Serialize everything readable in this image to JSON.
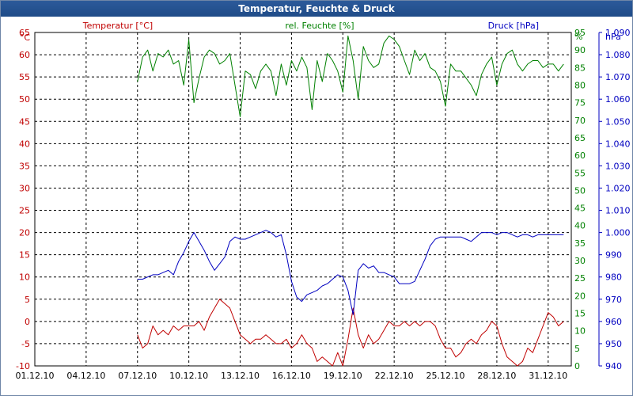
{
  "window": {
    "title": "Temperatur, Feuchte & Druck"
  },
  "chart_data": {
    "type": "line",
    "title": "Temperatur, Feuchte & Druck",
    "xlabel": "",
    "x_ticks": [
      "01.12.10",
      "04.12.10",
      "07.12.10",
      "10.12.10",
      "13.12.10",
      "16.12.10",
      "19.12.10",
      "22.12.10",
      "25.12.10",
      "28.12.10",
      "31.12.10"
    ],
    "xlim": [
      1,
      32.35
    ],
    "grid": true,
    "axes": {
      "temperature": {
        "label": "Temperatur [°C]",
        "unit": "°C",
        "side": "left",
        "color": "#c00000",
        "min": -10,
        "max": 65,
        "step": 5
      },
      "humidity": {
        "label": "rel. Feuchte [%]",
        "unit": "%",
        "side": "right",
        "color": "#008000",
        "min": 0,
        "max": 95,
        "step": 5
      },
      "pressure": {
        "label": "Druck [hPa]",
        "unit": "hPa",
        "side": "right",
        "color": "#0000c0",
        "min": 940,
        "max": 1090,
        "step": 10,
        "tick_labels": [
          "940",
          "950",
          "960",
          "970",
          "980",
          "990",
          "1.000",
          "1.010",
          "1.020",
          "1.030",
          "1.040",
          "1.050",
          "1.060",
          "1.070",
          "1.080",
          "1.090"
        ]
      }
    },
    "series": [
      {
        "name": "Temperatur [°C]",
        "axis": "temperature",
        "color": "#c00000",
        "x": [
          7.0,
          7.3,
          7.6,
          7.9,
          8.2,
          8.5,
          8.8,
          9.1,
          9.4,
          9.7,
          10.0,
          10.3,
          10.6,
          10.9,
          11.2,
          11.5,
          11.8,
          12.1,
          12.4,
          12.7,
          13.0,
          13.3,
          13.6,
          13.9,
          14.2,
          14.5,
          14.8,
          15.1,
          15.4,
          15.7,
          16.0,
          16.3,
          16.6,
          16.9,
          17.2,
          17.5,
          17.8,
          18.1,
          18.4,
          18.7,
          19.0,
          19.3,
          19.6,
          19.9,
          20.2,
          20.5,
          20.8,
          21.1,
          21.4,
          21.7,
          22.0,
          22.3,
          22.6,
          22.9,
          23.2,
          23.5,
          23.8,
          24.1,
          24.4,
          24.7,
          25.0,
          25.3,
          25.6,
          25.9,
          26.2,
          26.5,
          26.8,
          27.1,
          27.4,
          27.7,
          28.0,
          28.3,
          28.6,
          28.9,
          29.2,
          29.5,
          29.8,
          30.1,
          30.4,
          30.7,
          31.0,
          31.3,
          31.6,
          31.9
        ],
        "values": [
          -3,
          -6,
          -5,
          -1,
          -3,
          -2,
          -3,
          -1,
          -2,
          -1,
          -1,
          -1,
          0,
          -2,
          1,
          3,
          5,
          4,
          3,
          0,
          -3,
          -4,
          -5,
          -4,
          -4,
          -3,
          -4,
          -5,
          -5,
          -4,
          -6,
          -5,
          -3,
          -5,
          -6,
          -9,
          -8,
          -9,
          -10,
          -7,
          -10,
          -4,
          3,
          -3,
          -6,
          -3,
          -5,
          -4,
          -2,
          0,
          -1,
          -1,
          0,
          -1,
          0,
          -1,
          0,
          0,
          -1,
          -4,
          -6,
          -6,
          -8,
          -7,
          -5,
          -4,
          -5,
          -3,
          -2,
          0,
          -1,
          -5,
          -8,
          -9,
          -10,
          -9,
          -6,
          -7,
          -4,
          -1,
          2,
          1,
          -1,
          0
        ]
      },
      {
        "name": "rel. Feuchte [%]",
        "axis": "humidity",
        "color": "#008000",
        "x": [
          7.0,
          7.3,
          7.6,
          7.9,
          8.2,
          8.5,
          8.8,
          9.1,
          9.4,
          9.7,
          10.0,
          10.3,
          10.6,
          10.9,
          11.2,
          11.5,
          11.8,
          12.1,
          12.4,
          12.7,
          13.0,
          13.3,
          13.6,
          13.9,
          14.2,
          14.5,
          14.8,
          15.1,
          15.4,
          15.7,
          16.0,
          16.3,
          16.6,
          16.9,
          17.2,
          17.5,
          17.8,
          18.1,
          18.4,
          18.7,
          19.0,
          19.3,
          19.6,
          19.9,
          20.2,
          20.5,
          20.8,
          21.1,
          21.4,
          21.7,
          22.0,
          22.3,
          22.6,
          22.9,
          23.2,
          23.5,
          23.8,
          24.1,
          24.4,
          24.7,
          25.0,
          25.3,
          25.6,
          25.9,
          26.2,
          26.5,
          26.8,
          27.1,
          27.4,
          27.7,
          28.0,
          28.3,
          28.6,
          28.9,
          29.2,
          29.5,
          29.8,
          30.1,
          30.4,
          30.7,
          31.0,
          31.3,
          31.6,
          31.9
        ],
        "values": [
          81,
          88,
          90,
          84,
          89,
          88,
          90,
          86,
          87,
          80,
          93,
          75,
          82,
          88,
          90,
          89,
          86,
          87,
          89,
          80,
          71,
          84,
          83,
          79,
          84,
          86,
          84,
          77,
          86,
          80,
          87,
          84,
          88,
          85,
          73,
          87,
          81,
          89,
          87,
          84,
          78,
          94,
          87,
          76,
          91,
          87,
          85,
          86,
          92,
          94,
          93,
          91,
          87,
          83,
          90,
          87,
          89,
          85,
          84,
          81,
          74,
          86,
          84,
          84,
          82,
          80,
          77,
          83,
          86,
          88,
          80,
          86,
          89,
          90,
          86,
          84,
          86,
          87,
          87,
          85,
          86,
          86,
          84,
          86
        ]
      },
      {
        "name": "Druck [hPa]",
        "axis": "pressure",
        "color": "#0000c0",
        "x": [
          7.0,
          7.3,
          7.6,
          7.9,
          8.2,
          8.5,
          8.8,
          9.1,
          9.4,
          9.7,
          10.0,
          10.3,
          10.6,
          10.9,
          11.2,
          11.5,
          11.8,
          12.1,
          12.4,
          12.7,
          13.0,
          13.3,
          13.6,
          13.9,
          14.2,
          14.5,
          14.8,
          15.1,
          15.4,
          15.7,
          16.0,
          16.3,
          16.6,
          16.9,
          17.2,
          17.5,
          17.8,
          18.1,
          18.4,
          18.7,
          19.0,
          19.3,
          19.6,
          19.9,
          20.2,
          20.5,
          20.8,
          21.1,
          21.4,
          21.7,
          22.0,
          22.3,
          22.6,
          22.9,
          23.2,
          23.5,
          23.8,
          24.1,
          24.4,
          24.7,
          25.0,
          25.3,
          25.6,
          25.9,
          26.2,
          26.5,
          26.8,
          27.1,
          27.4,
          27.7,
          28.0,
          28.3,
          28.6,
          28.9,
          29.2,
          29.5,
          29.8,
          30.1,
          30.4,
          30.7,
          31.0,
          31.3,
          31.6,
          31.9
        ],
        "values": [
          979,
          979,
          980,
          981,
          981,
          982,
          983,
          981,
          987,
          991,
          996,
          1000,
          996,
          992,
          987,
          983,
          986,
          989,
          996,
          998,
          997,
          997,
          998,
          999,
          1000,
          1001,
          1000,
          998,
          999,
          990,
          978,
          971,
          969,
          972,
          973,
          974,
          976,
          977,
          979,
          981,
          980,
          974,
          963,
          983,
          986,
          984,
          985,
          982,
          982,
          981,
          980,
          977,
          977,
          977,
          978,
          983,
          988,
          994,
          997,
          998,
          998,
          998,
          998,
          998,
          997,
          996,
          998,
          1000,
          1000,
          1000,
          999,
          1000,
          1000,
          999,
          998,
          999,
          999,
          998,
          999,
          999,
          999,
          999,
          999,
          999
        ]
      }
    ]
  }
}
